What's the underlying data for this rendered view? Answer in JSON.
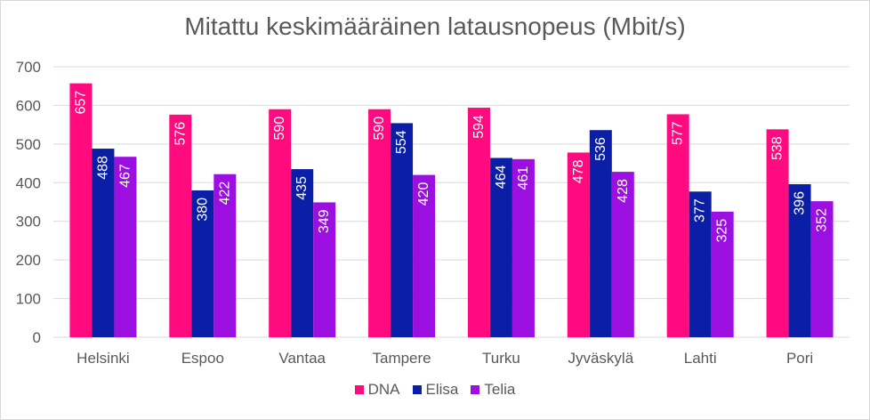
{
  "chart_data": {
    "type": "bar",
    "title": "Mitattu keskimääräinen latausnopeus (Mbit/s)",
    "xlabel": "",
    "ylabel": "",
    "categories": [
      "Helsinki",
      "Espoo",
      "Vantaa",
      "Tampere",
      "Turku",
      "Jyväskylä",
      "Lahti",
      "Pori"
    ],
    "series": [
      {
        "name": "DNA",
        "color": "#ff0a7f",
        "values": [
          657,
          576,
          590,
          590,
          594,
          478,
          577,
          538
        ]
      },
      {
        "name": "Elisa",
        "color": "#0a1fa5",
        "values": [
          488,
          380,
          435,
          554,
          464,
          536,
          377,
          396
        ]
      },
      {
        "name": "Telia",
        "color": "#9b10e0",
        "values": [
          467,
          422,
          349,
          420,
          461,
          428,
          325,
          352
        ]
      }
    ],
    "ylim": [
      0,
      700
    ],
    "yticks": [
      0,
      100,
      200,
      300,
      400,
      500,
      600,
      700
    ],
    "grid": true,
    "legend_position": "bottom"
  }
}
